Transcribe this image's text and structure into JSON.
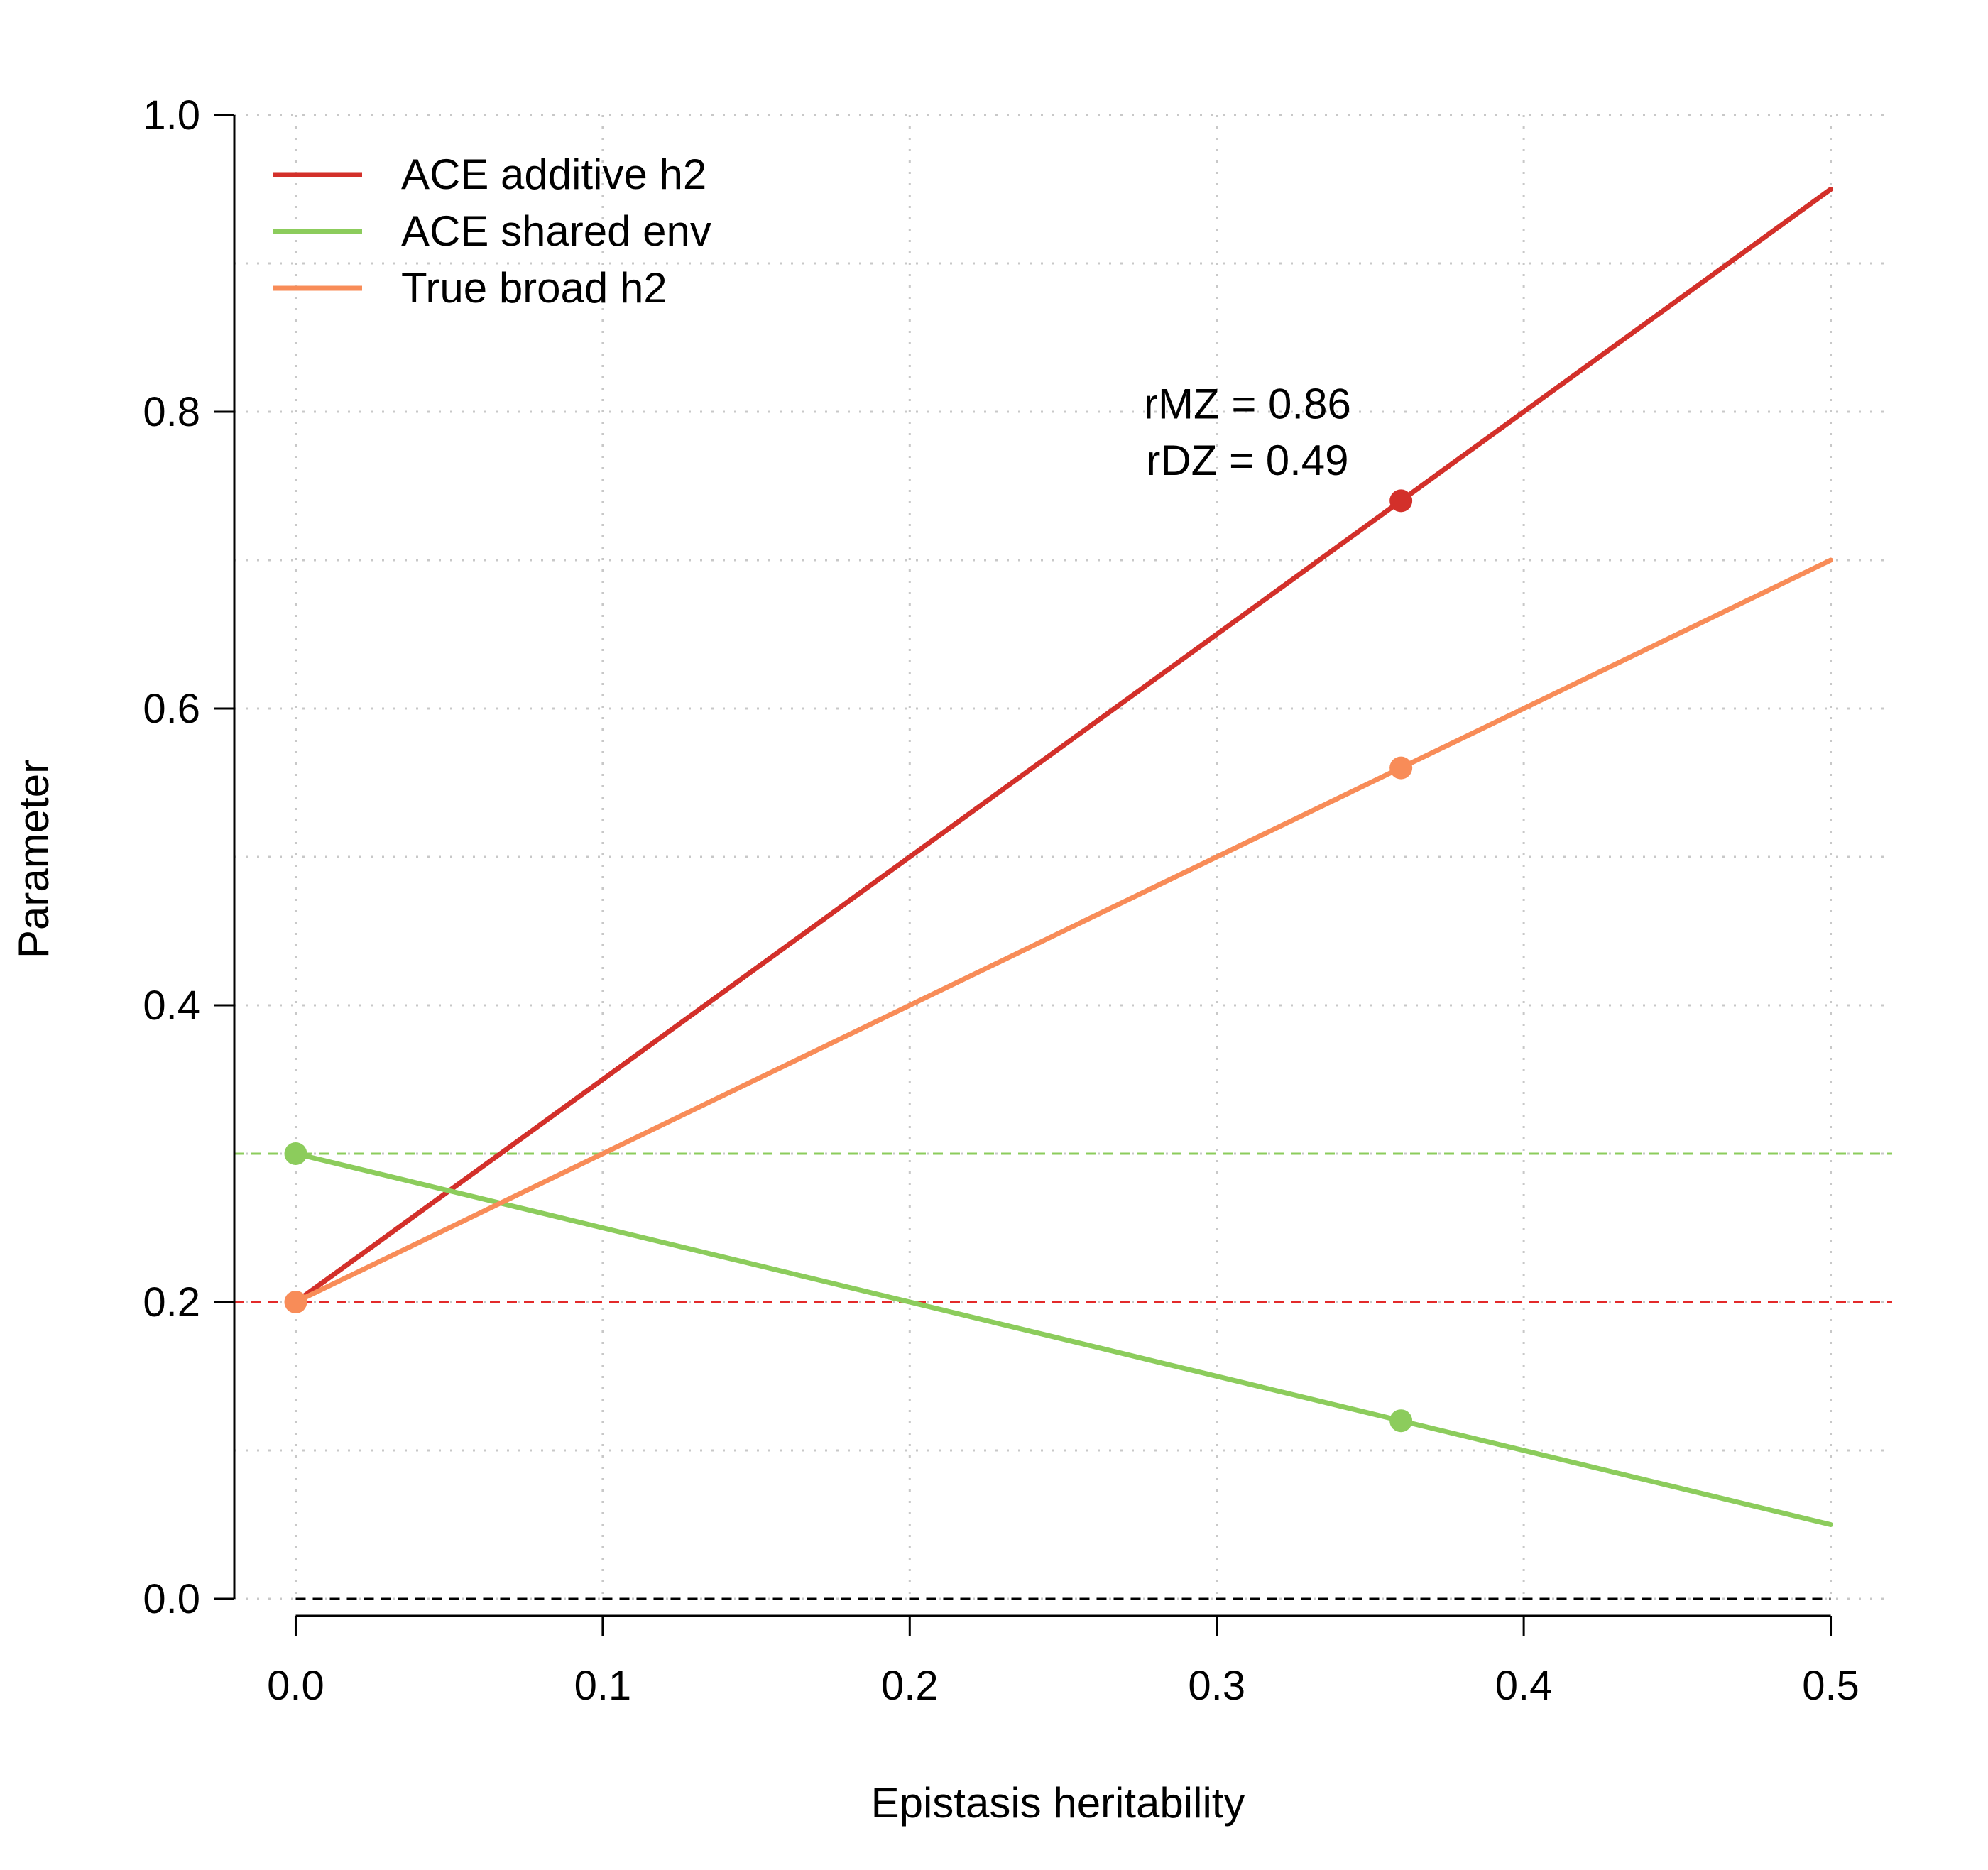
{
  "chart_data": {
    "type": "line",
    "xlabel": "Epistasis heritability",
    "ylabel": "Parameter",
    "xlim": [
      -0.02,
      0.52
    ],
    "ylim": [
      0.0,
      1.0
    ],
    "x_ticks": [
      "0.0",
      "0.1",
      "0.2",
      "0.3",
      "0.4",
      "0.5"
    ],
    "y_ticks": [
      "0.0",
      "0.2",
      "0.4",
      "0.6",
      "0.8",
      "1.0"
    ],
    "grid": true,
    "legend_position": "top-left",
    "series": [
      {
        "name": "ACE additive h2",
        "color": "#d3302a",
        "x": [
          0.0,
          0.5
        ],
        "y": [
          0.2,
          0.95
        ]
      },
      {
        "name": "ACE shared env",
        "color": "#8ccc5c",
        "x": [
          0.0,
          0.5
        ],
        "y": [
          0.3,
          0.05
        ]
      },
      {
        "name": "True broad h2",
        "color": "#f88c58",
        "x": [
          0.0,
          0.5
        ],
        "y": [
          0.2,
          0.7
        ]
      }
    ],
    "reference_lines": [
      {
        "y": 0.3,
        "color": "#8ccc5c",
        "style": "dashed"
      },
      {
        "y": 0.2,
        "color": "#e32a2a",
        "style": "dashed"
      },
      {
        "y": 0.0,
        "color": "#000000",
        "style": "dashed"
      }
    ],
    "points": [
      {
        "series": "ACE shared env",
        "x": 0.0,
        "y": 0.3,
        "color": "#8ccc5c"
      },
      {
        "series": "True broad h2",
        "x": 0.0,
        "y": 0.2,
        "color": "#f88c58"
      },
      {
        "series": "ACE additive h2",
        "x": 0.36,
        "y": 0.74,
        "color": "#d3302a"
      },
      {
        "series": "True broad h2",
        "x": 0.36,
        "y": 0.56,
        "color": "#f88c58"
      },
      {
        "series": "ACE shared env",
        "x": 0.36,
        "y": 0.12,
        "color": "#8ccc5c"
      }
    ],
    "annotations": [
      {
        "text": "rMZ = 0.86",
        "x": 0.31,
        "y": 0.805
      },
      {
        "text": "rDZ = 0.49",
        "x": 0.31,
        "y": 0.767
      }
    ]
  }
}
